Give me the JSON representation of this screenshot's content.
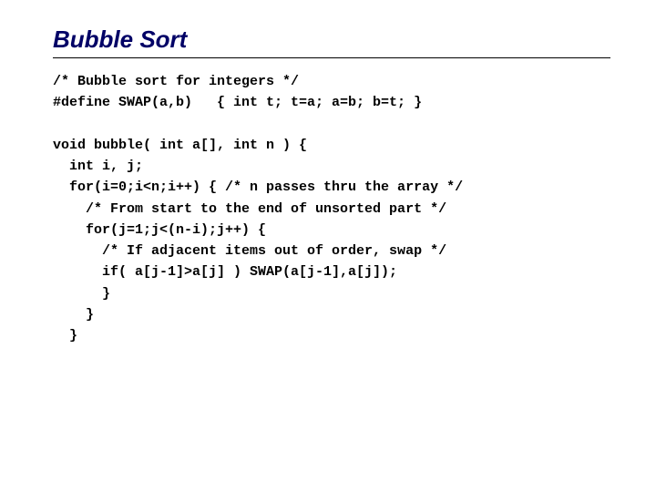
{
  "title": "Bubble Sort",
  "title_color": "#000066",
  "title_fontsize": 26,
  "rule_color": "#000000",
  "code_fontsize": 15,
  "code_lines": [
    "/* Bubble sort for integers */",
    "#define SWAP(a,b)   { int t; t=a; a=b; b=t; }",
    "",
    "void bubble( int a[], int n ) {",
    "  int i, j;",
    "  for(i=0;i<n;i++) { /* n passes thru the array */",
    "    /* From start to the end of unsorted part */",
    "    for(j=1;j<(n-i);j++) {",
    "      /* If adjacent items out of order, swap */",
    "      if( a[j-1]>a[j] ) SWAP(a[j-1],a[j]);",
    "      }",
    "    }",
    "  }"
  ]
}
